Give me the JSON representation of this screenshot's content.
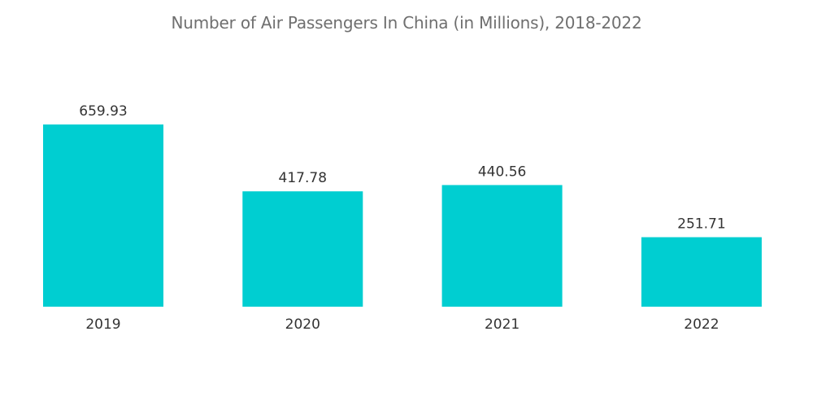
{
  "chart_data": {
    "type": "bar",
    "title": "Number of Air Passengers In China (in Millions), 2018-2022",
    "categories": [
      "2019",
      "2020",
      "2021",
      "2022"
    ],
    "values": [
      659.93,
      417.78,
      440.56,
      251.71
    ],
    "value_labels": [
      "659.93",
      "417.78",
      "440.56",
      "251.71"
    ],
    "xlabel": "",
    "ylabel": "",
    "ylim": [
      0,
      660
    ],
    "grid": false,
    "legend": "none",
    "bar_color": "#00CED1"
  }
}
